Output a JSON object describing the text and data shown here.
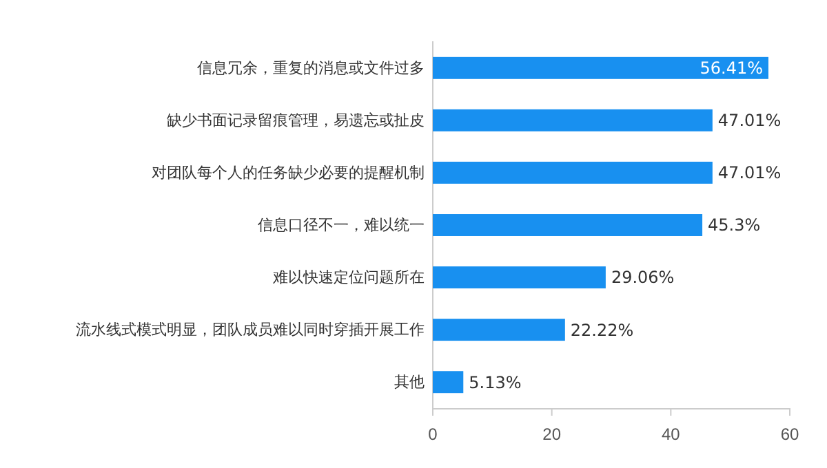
{
  "chart_data": {
    "type": "bar",
    "orientation": "horizontal",
    "categories": [
      "信息冗余，重复的消息或文件过多",
      "缺少书面记录留痕管理，易遗忘或扯皮",
      "对团队每个人的任务缺少必要的提醒机制",
      "信息口径不一，难以统一",
      "难以快速定位问题所在",
      "流水线式模式明显，团队成员难以同时穿插开展工作",
      "其他"
    ],
    "values": [
      56.41,
      47.01,
      47.01,
      45.3,
      29.06,
      22.22,
      5.13
    ],
    "value_labels": [
      "56.41%",
      "47.01%",
      "47.01%",
      "45.3%",
      "29.06%",
      "22.22%",
      "5.13%"
    ],
    "color": "#1890f0",
    "xlim": [
      0,
      60
    ],
    "xticks": [
      0,
      20,
      40,
      60
    ]
  }
}
